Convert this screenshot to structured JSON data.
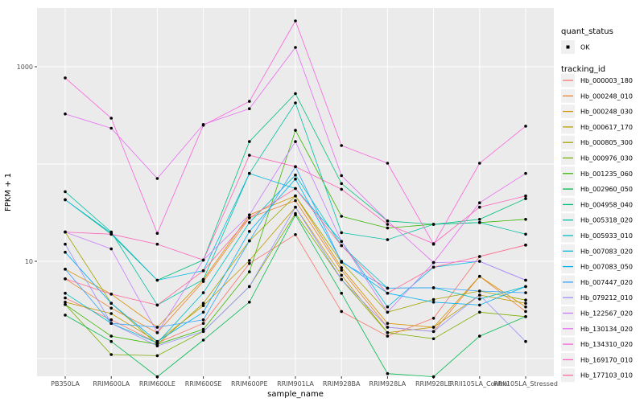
{
  "figure": {
    "background": "#ffffff",
    "panel_background": "#ebebeb",
    "gridline_color": "#ffffff",
    "tick_color": "#333333",
    "tick_label_color": "#4d4d4d",
    "point_color": "#000000"
  },
  "legend": {
    "quant_status_title": "quant_status",
    "quant_status_items": [
      {
        "label": "OK",
        "marker": "black-point"
      }
    ],
    "tracking_id_title": "tracking_id",
    "key_background": "#f0f0f0"
  },
  "chart_data": {
    "type": "line",
    "title": "",
    "xlabel": "sample_name",
    "ylabel": "FPKM + 1",
    "y_scale": "log10",
    "ylim": [
      0.55,
      4500
    ],
    "y_ticks": [
      {
        "value": 10,
        "label": "10"
      },
      {
        "value": 1000,
        "label": "1000"
      }
    ],
    "y_gridlines": [
      1,
      10,
      100,
      1000
    ],
    "grid": true,
    "legend_position": "right",
    "x_categories": [
      "PB350LA",
      "RRIM600LA",
      "RRIM600LE",
      "RRIM600SE",
      "RRIM600PE",
      "RRIM901LA",
      "RRIM928BA",
      "RRIM928LA",
      "RRIM928LE",
      "RRII105LA_Control",
      "RRII105LA_Stressed"
    ],
    "series": [
      {
        "name": "Hb_000003_180",
        "color": "#F8766D",
        "values": [
          4.2,
          2.5,
          1.45,
          2.3,
          9.5,
          18.8,
          3.05,
          1.7,
          2.6,
          11.2,
          14.7
        ]
      },
      {
        "name": "Hb_000248_010",
        "color": "#EA8331",
        "values": [
          6.6,
          3.3,
          1.85,
          6.2,
          28,
          42,
          8.1,
          2.1,
          1.9,
          7.0,
          3.05
        ]
      },
      {
        "name": "Hb_000248_030",
        "color": "#D89000",
        "values": [
          8.3,
          4.6,
          2.1,
          6.5,
          30,
          47,
          8.6,
          2.3,
          2.1,
          7.0,
          3.4
        ]
      },
      {
        "name": "Hb_000617_170",
        "color": "#C09B00",
        "values": [
          3.8,
          2.9,
          1.5,
          3.5,
          10.2,
          36,
          7.2,
          1.85,
          2.1,
          4.5,
          3.7
        ]
      },
      {
        "name": "Hb_000805_300",
        "color": "#A3A500",
        "values": [
          20,
          3.7,
          1.4,
          3.7,
          16.2,
          47,
          9.8,
          3.0,
          4.05,
          4.95,
          4.0
        ]
      },
      {
        "name": "Hb_000976_030",
        "color": "#7CAE00",
        "values": [
          3.6,
          1.1,
          1.07,
          1.9,
          5.5,
          31,
          6.5,
          1.85,
          1.6,
          3.0,
          2.7
        ]
      },
      {
        "name": "Hb_001235_060",
        "color": "#39B600",
        "values": [
          3.6,
          1.7,
          1.4,
          2.0,
          7.8,
          222,
          29,
          22,
          24,
          25,
          27
        ]
      },
      {
        "name": "Hb_002960_050",
        "color": "#00BB4E",
        "values": [
          2.8,
          1.5,
          0.65,
          1.55,
          3.8,
          30,
          4.7,
          0.7,
          0.65,
          1.7,
          2.7
        ]
      },
      {
        "name": "Hb_004958_040",
        "color": "#00BF7D",
        "values": [
          43,
          19,
          6.4,
          10.3,
          170,
          530,
          63,
          26,
          24,
          27,
          44
        ]
      },
      {
        "name": "Hb_005318_020",
        "color": "#00C1A3",
        "values": [
          52,
          20,
          3.55,
          6.5,
          80,
          425,
          19.7,
          16.7,
          24,
          25,
          19
        ]
      },
      {
        "name": "Hb_005933_010",
        "color": "#00BFC4",
        "values": [
          4.7,
          2.3,
          1.45,
          4.75,
          25,
          77,
          14.5,
          5.3,
          5.35,
          4.1,
          5.5
        ]
      },
      {
        "name": "Hb_007083_020",
        "color": "#00BAE0",
        "values": [
          43,
          19.5,
          6.4,
          8.0,
          80,
          56,
          16,
          3.4,
          8.7,
          10,
          6.4
        ]
      },
      {
        "name": "Hb_007083_050",
        "color": "#00B0F6",
        "values": [
          12.4,
          3.7,
          1.5,
          3.0,
          20.3,
          70,
          10,
          4.7,
          3.8,
          3.55,
          5.5
        ]
      },
      {
        "name": "Hb_007447_020",
        "color": "#35A2FF",
        "values": [
          8.3,
          2.3,
          2.1,
          2.5,
          16.2,
          94,
          9.8,
          5.3,
          5.35,
          4.95,
          4.75
        ]
      },
      {
        "name": "Hb_079212_010",
        "color": "#9590FF",
        "values": [
          15,
          2.3,
          1.35,
          1.9,
          5.5,
          36,
          6.5,
          2.1,
          1.9,
          4.5,
          1.5
        ]
      },
      {
        "name": "Hb_122567_020",
        "color": "#C77CFF",
        "values": [
          20,
          13.4,
          1.85,
          10.3,
          30,
          170,
          16,
          3.0,
          9.7,
          10,
          6.4
        ]
      },
      {
        "name": "Hb_130134_020",
        "color": "#E76BF3",
        "values": [
          327,
          233,
          71,
          255,
          370,
          1580,
          76,
          26,
          9.7,
          40,
          80
        ]
      },
      {
        "name": "Hb_134310_020",
        "color": "#FA62DB",
        "values": [
          767,
          296,
          19.4,
          250,
          440,
          2960,
          155,
          102,
          15,
          102,
          245
        ]
      },
      {
        "name": "Hb_169170_010",
        "color": "#FF62BC",
        "values": [
          20,
          19,
          15,
          10.3,
          123,
          94,
          55,
          24,
          15.2,
          36,
          47
        ]
      },
      {
        "name": "Hb_177103_010",
        "color": "#FF6A98",
        "values": [
          6.6,
          4.6,
          3.55,
          8.0,
          28,
          56,
          14.5,
          4.7,
          8.7,
          11.2,
          14.7
        ]
      }
    ]
  }
}
